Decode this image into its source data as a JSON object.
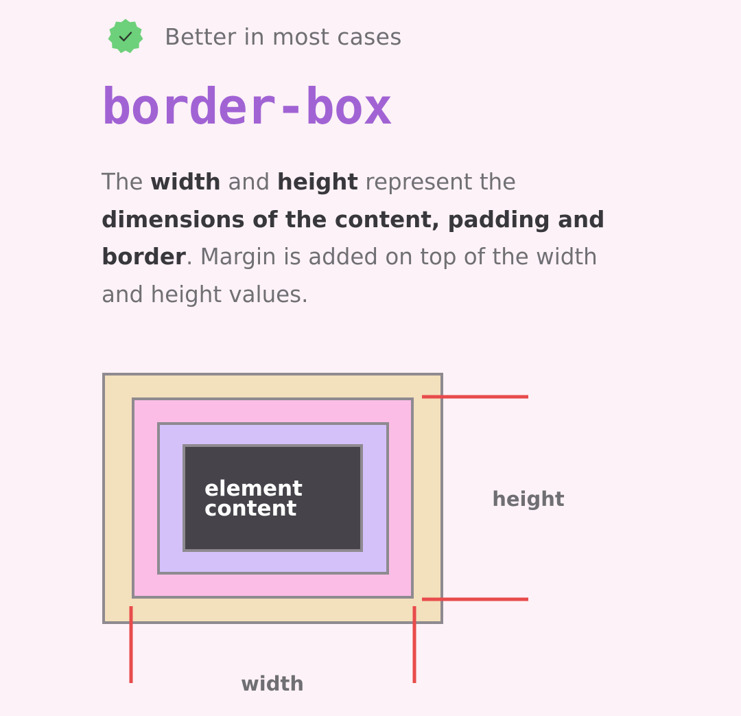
{
  "badge": {
    "label": "Better in most cases",
    "icon": "check-badge-icon",
    "color": "#6dd07a"
  },
  "title": "border-box",
  "description": {
    "t1": "The ",
    "b1": "width",
    "t2": " and ",
    "b2": "height",
    "t3": " represent the ",
    "b3": "dimensions of the content, padding and border",
    "t4": ". Margin is added on top of the width and height values."
  },
  "diagram": {
    "content_label_line1": "element",
    "content_label_line2": "content",
    "height_label": "height",
    "width_label": "width",
    "colors": {
      "margin": "#f3e0bc",
      "border": "#fbbde6",
      "padding": "#d4c1fa",
      "content": "#46444a",
      "outline": "#8e8a90",
      "measure": "#e84b4b"
    }
  }
}
